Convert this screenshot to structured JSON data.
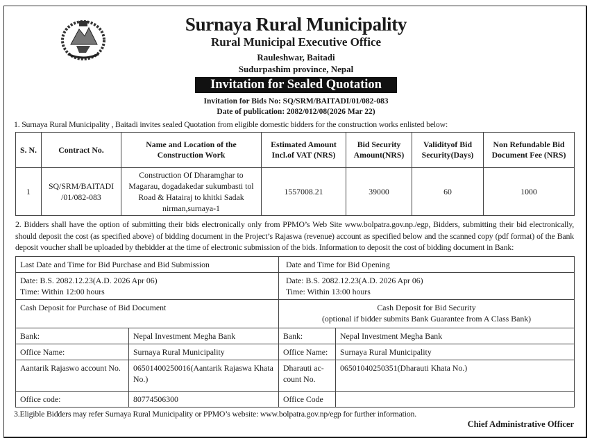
{
  "header": {
    "emblem_icon": "nepal-government-emblem",
    "title": "Surnaya Rural Municipality",
    "office": "Rural Municipal Executive Office",
    "address": "Rauleshwar, Baitadi",
    "province": "Sudurpashim province, Nepal",
    "banner": "Invitation for Sealed Quotation",
    "bid_no": "Invitation for Bids No: SQ/SRM/BAITADI/01/082-083",
    "publication_date": "Date of publication: 2082/012/08(2026 Mar 22)"
  },
  "para1": "1. Surnaya Rural Municipality , Baitadi invites sealed Quotation from eligible domestic bidders for the construction works enlisted below:",
  "works_table": {
    "headers": [
      "S. N.",
      "Contract No.",
      "Name and Location of the Construction Work",
      "Estimated Amount Incl.of VAT (NRS)",
      "Bid Security Amount(NRS)",
      "Validityof Bid Security(Days)",
      "Non Refundable Bid Document Fee (NRS)"
    ],
    "rows": [
      [
        "1",
        "SQ/SRM/BAITADI /01/082-083",
        "Construction Of Dharamghar to Magarau, dogadakedar sukumbasti tol Road  & Hatairaj to khitki Sadak nirman,surnaya-1",
        "1557008.21",
        "39000",
        "60",
        "1000"
      ]
    ]
  },
  "para2": "2. Bidders shall have the option of submitting their bids electronically only from PPMO’s Web Site www.bolpatra.gov.np./egp, Bidders, submitting their bid electronically, should deposit the cost (as specified above) of bidding document in the Project’s Rajaswa (revenue) account as specified below and the scanned copy (pdf format) of the Bank deposit voucher shall be uploaded by thebidder at the time of electronic submission of the bids. Information to deposit the cost of bidding document in Bank:",
  "schedule": {
    "submission_label": "Last Date and Time for Bid Purchase and  Bid Submission",
    "submission_date": "Date: B.S. 2082.12.23(A.D. 2026 Apr 06)",
    "submission_time": "Time: Within 12:00 hours",
    "opening_label": "Date and Time for Bid Opening",
    "opening_date": "Date: B.S. 2082.12.23(A.D. 2026 Apr 06)",
    "opening_time": "Time: Within 13:00 hours"
  },
  "deposit": {
    "doc_title": "Cash Deposit for Purchase of Bid Document",
    "sec_title": "Cash Deposit for Bid Security",
    "sec_note": "(optional if bidder submits Bank Guarantee from A Class Bank)",
    "rows": [
      [
        "Bank:",
        "Nepal Investment Megha Bank",
        "Bank:",
        "Nepal Investment Megha Bank"
      ],
      [
        "Office  Name:",
        "Surnaya Rural Municipality",
        "Office Name:",
        "Surnaya Rural Municipality"
      ],
      [
        "Aantarik Rajaswo account No.",
        "06501400250016(Aantarik Rajaswa Khata No.)",
        "Dharauti ac-count No.",
        "06501040250351(Dharauti Khata No.)"
      ],
      [
        "Office code:",
        "80774506300",
        "Office Code",
        ""
      ]
    ]
  },
  "para3": "3.Eligible Bidders may refer Surnaya Rural Municipality or PPMO’s website: www.bolpatra.gov.np/egp for further  information.",
  "signature": "Chief Administrative Officer"
}
